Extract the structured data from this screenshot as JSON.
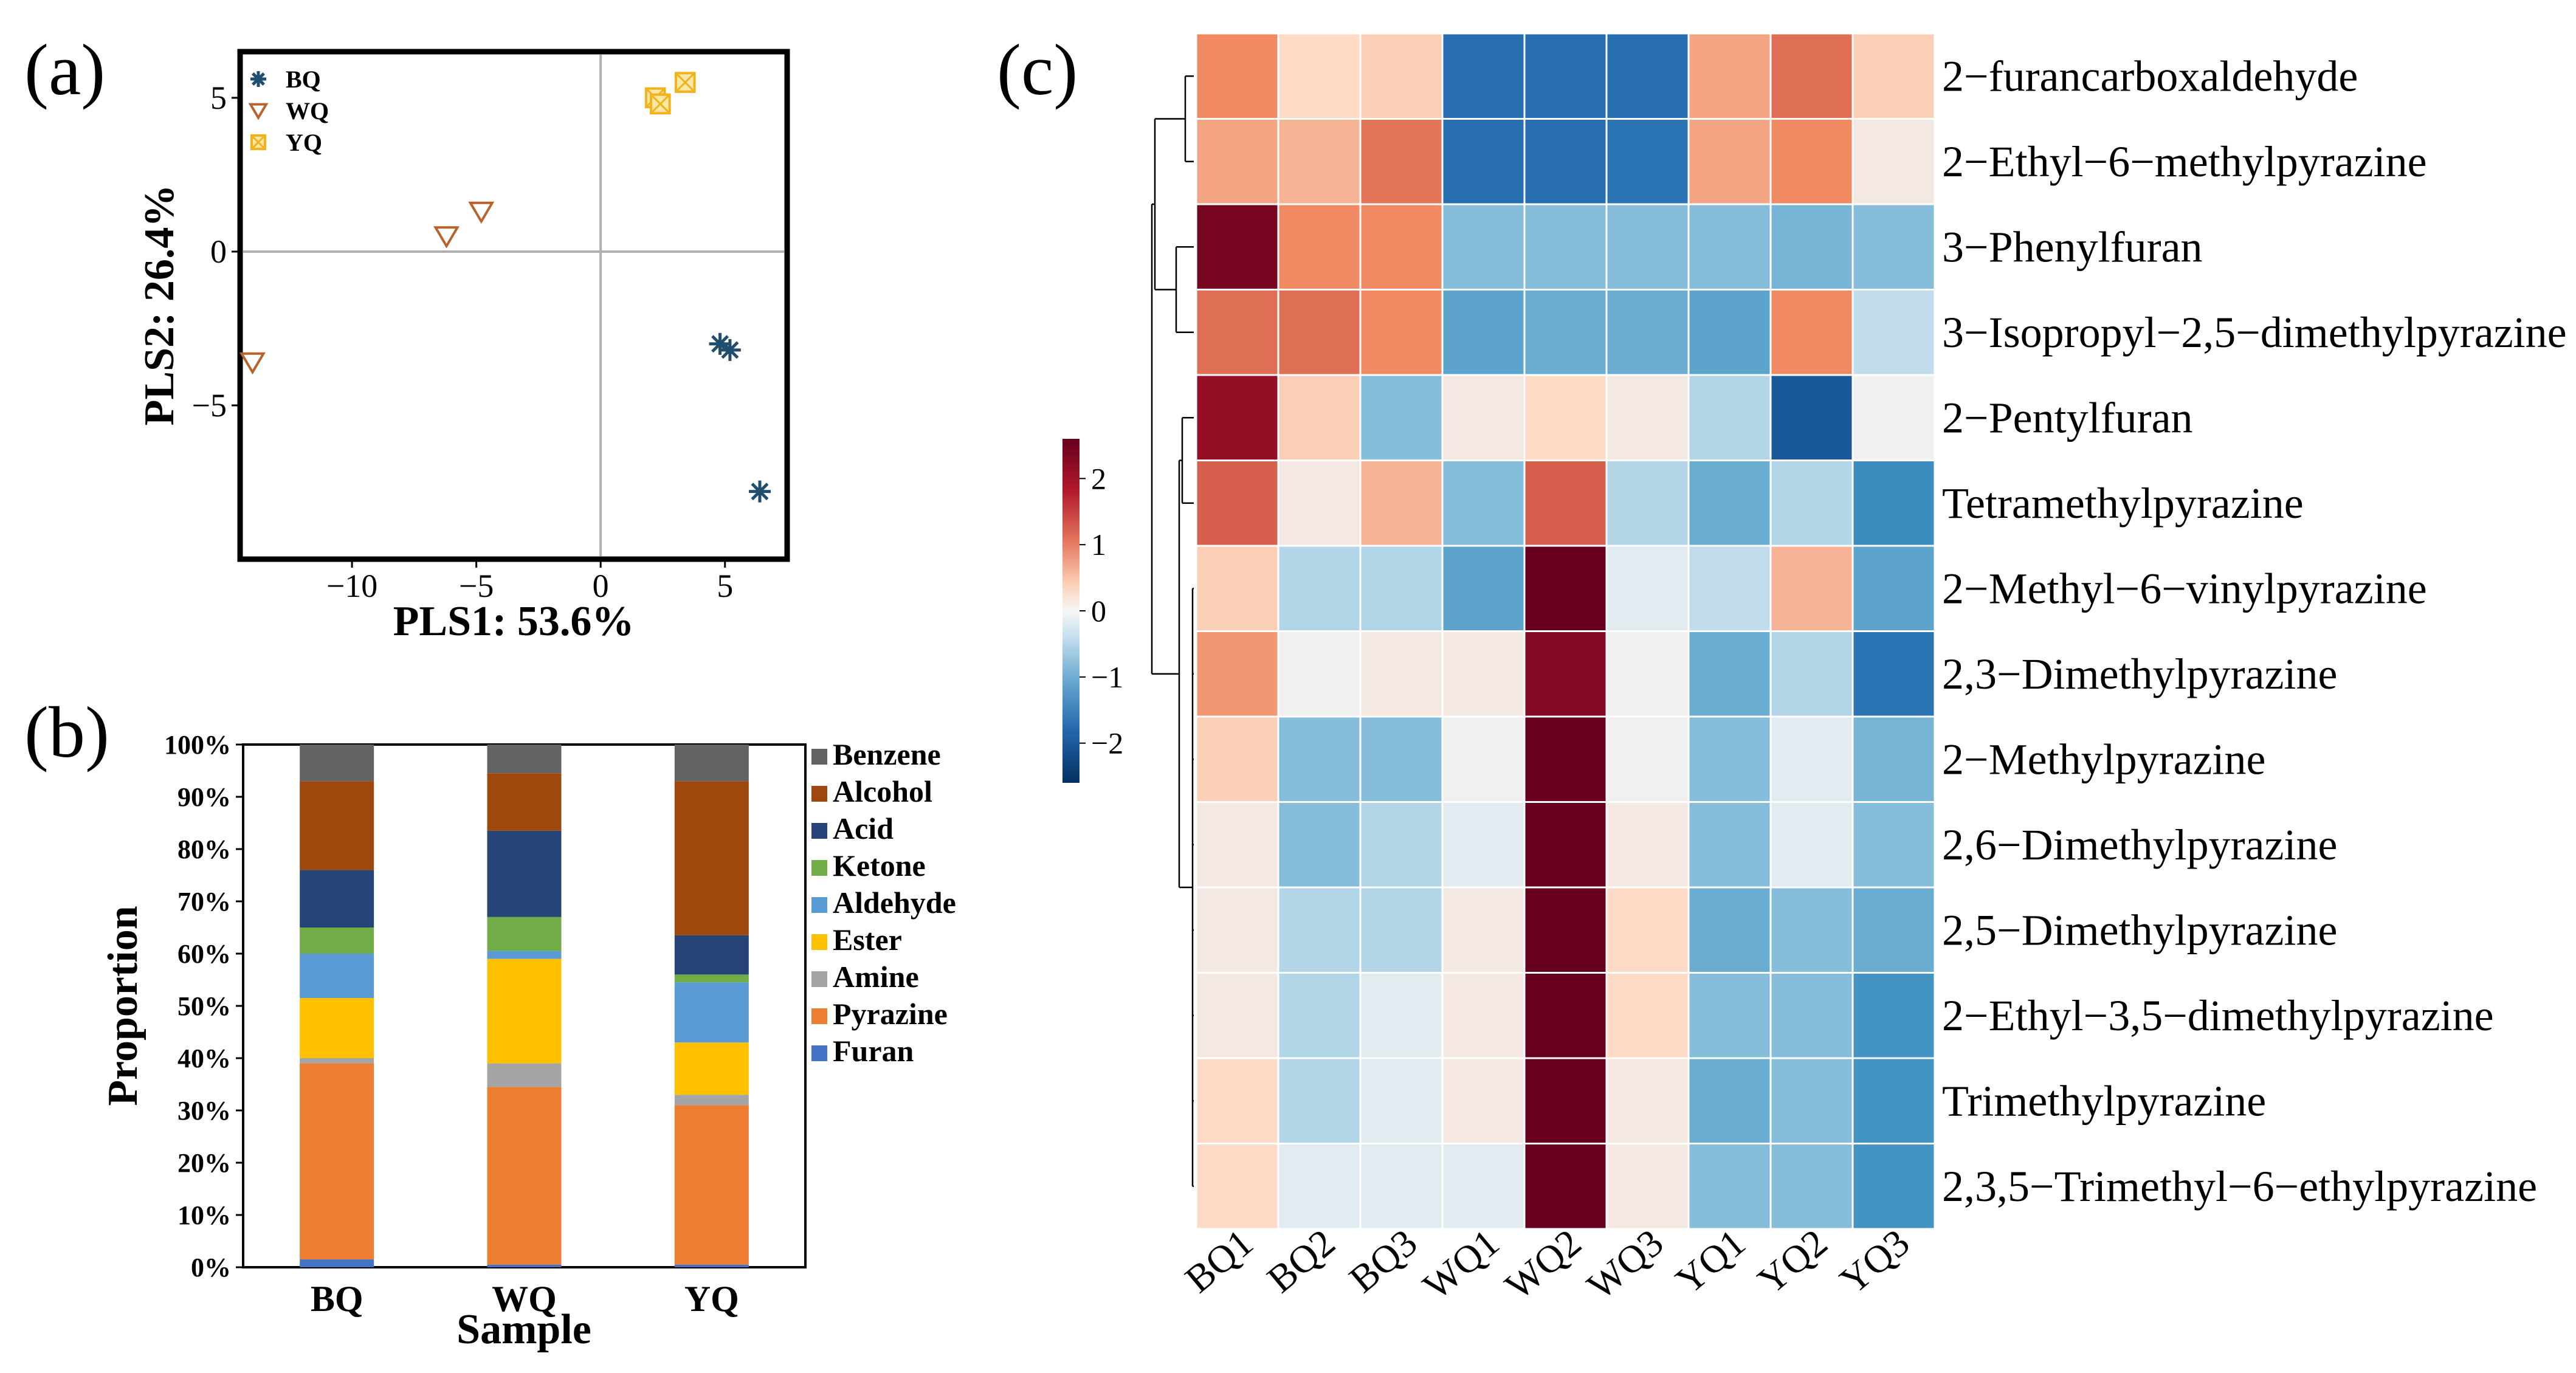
{
  "chart_data": [
    {
      "panel": "(a)",
      "type": "scatter",
      "xlabel": "PLS1: 53.6%",
      "ylabel": "PLS2: 26.4%",
      "xlim": [
        -14.5,
        7.5
      ],
      "ylim": [
        -10.0,
        6.5
      ],
      "xticks": [
        -10,
        -5,
        0,
        5
      ],
      "xtick_labels": [
        "−10",
        "−5",
        "0",
        "5"
      ],
      "yticks": [
        5,
        0,
        -5
      ],
      "ytick_labels": [
        "5",
        "0",
        "−5"
      ],
      "zero_lines": true,
      "legend_position": "top-left",
      "series": [
        {
          "name": "BQ",
          "marker": "asterisk",
          "color": "#1f4e6e",
          "points": [
            [
              4.8,
              -3.0
            ],
            [
              5.2,
              -3.2
            ],
            [
              6.4,
              -7.8
            ]
          ]
        },
        {
          "name": "WQ",
          "marker": "triangle-down",
          "color": "#b8622c",
          "points": [
            [
              -6.2,
              0.5
            ],
            [
              -4.8,
              1.3
            ],
            [
              -14.0,
              -3.6
            ]
          ]
        },
        {
          "name": "YQ",
          "marker": "square-x",
          "color": "#f2b21b",
          "points": [
            [
              2.2,
              5.0
            ],
            [
              2.4,
              4.8
            ],
            [
              3.4,
              5.5
            ]
          ]
        }
      ]
    },
    {
      "panel": "(b)",
      "type": "bar",
      "stacked": true,
      "xlabel": "Sample",
      "ylabel": "Proportion",
      "categories": [
        "BQ",
        "WQ",
        "YQ"
      ],
      "yticks": [
        "0%",
        "10%",
        "20%",
        "30%",
        "40%",
        "50%",
        "60%",
        "70%",
        "80%",
        "90%",
        "100%"
      ],
      "ylim": [
        0,
        100
      ],
      "legend_position": "right",
      "series": [
        {
          "name": "Furan",
          "color": "#4472c4",
          "values": [
            1.5,
            0.5,
            0.5
          ]
        },
        {
          "name": "Pyrazine",
          "color": "#ed7d31",
          "values": [
            37.5,
            34.0,
            30.5
          ]
        },
        {
          "name": "Amine",
          "color": "#a5a5a5",
          "values": [
            1.0,
            4.5,
            2.0
          ]
        },
        {
          "name": "Ester",
          "color": "#ffc000",
          "values": [
            11.5,
            20.0,
            10.0
          ]
        },
        {
          "name": "Aldehyde",
          "color": "#5b9bd5",
          "values": [
            8.5,
            1.5,
            11.5
          ]
        },
        {
          "name": "Ketone",
          "color": "#70ad47",
          "values": [
            5.0,
            6.5,
            1.5
          ]
        },
        {
          "name": "Acid",
          "color": "#264478",
          "values": [
            11.0,
            16.5,
            7.5
          ]
        },
        {
          "name": "Alcohol",
          "color": "#9e480e",
          "values": [
            17.0,
            11.0,
            29.5
          ]
        },
        {
          "name": "Benzene",
          "color": "#636363",
          "values": [
            7.0,
            5.5,
            7.0
          ]
        }
      ]
    },
    {
      "panel": "(c)",
      "type": "heatmap",
      "columns": [
        "BQ1",
        "BQ2",
        "BQ3",
        "WQ1",
        "WQ2",
        "WQ3",
        "YQ1",
        "YQ2",
        "YQ3"
      ],
      "rows": [
        "2−furancarboxaldehyde",
        "2−Ethyl−6−methylpyrazine",
        "3−Phenylfuran",
        "3−Isopropyl−2,5−dimethylpyrazine",
        "2−Pentylfuran",
        "Tetramethylpyrazine",
        "2−Methyl−6−vinylpyrazine",
        "2,3−Dimethylpyrazine",
        "2−Methylpyrazine",
        "2,6−Dimethylpyrazine",
        "2,5−Dimethylpyrazine",
        "2−Ethyl−3,5−dimethylpyrazine",
        "Trimethylpyrazine",
        "2,3,5−Trimethyl−6−ethylpyrazine"
      ],
      "values": [
        [
          0.9,
          0.3,
          0.4,
          -1.7,
          -1.7,
          -1.7,
          0.7,
          1.3,
          0.4
        ],
        [
          0.7,
          0.6,
          1.2,
          -1.7,
          -1.7,
          -1.6,
          0.7,
          0.9,
          0.1
        ],
        [
          2.5,
          0.9,
          0.9,
          -0.7,
          -0.7,
          -0.7,
          -0.7,
          -0.8,
          -0.7
        ],
        [
          1.3,
          1.3,
          0.9,
          -1.0,
          -0.9,
          -0.9,
          -1.0,
          0.9,
          -0.3
        ],
        [
          2.3,
          0.4,
          -0.7,
          0.1,
          0.3,
          0.1,
          -0.4,
          -2.0,
          0.0
        ],
        [
          1.5,
          0.1,
          0.6,
          -0.7,
          1.5,
          -0.4,
          -0.9,
          -0.4,
          -1.3
        ],
        [
          0.4,
          -0.4,
          -0.4,
          -1.0,
          2.6,
          -0.1,
          -0.3,
          0.6,
          -1.0
        ],
        [
          0.8,
          0.0,
          0.1,
          0.1,
          2.4,
          0.0,
          -0.9,
          -0.4,
          -1.6
        ],
        [
          0.4,
          -0.7,
          -0.7,
          0.0,
          2.6,
          0.0,
          -0.7,
          -0.1,
          -0.8
        ],
        [
          0.1,
          -0.7,
          -0.4,
          -0.1,
          2.6,
          0.1,
          -0.7,
          -0.1,
          -0.7
        ],
        [
          0.1,
          -0.4,
          -0.4,
          0.1,
          2.6,
          0.3,
          -0.9,
          -0.7,
          -0.9
        ],
        [
          0.1,
          -0.4,
          -0.1,
          0.1,
          2.6,
          0.3,
          -0.7,
          -0.7,
          -1.2
        ],
        [
          0.3,
          -0.4,
          -0.1,
          0.1,
          2.6,
          0.1,
          -0.9,
          -0.7,
          -1.2
        ],
        [
          0.3,
          -0.1,
          -0.1,
          -0.1,
          2.6,
          0.1,
          -0.7,
          -0.7,
          -1.2
        ]
      ],
      "colorbar": {
        "range": [
          -2.6,
          2.6
        ],
        "ticks": [
          2,
          1,
          0,
          -1,
          -2
        ],
        "tick_labels": [
          "2",
          "1",
          "0",
          "−1",
          "−2"
        ],
        "low_color": "#053061",
        "mid_color": "#f7f7f7",
        "high_color": "#67001f"
      },
      "dendrogram": "rows"
    }
  ],
  "labels": {
    "panel_a": "(a)",
    "panel_b": "(b)",
    "panel_c": "(c)"
  }
}
